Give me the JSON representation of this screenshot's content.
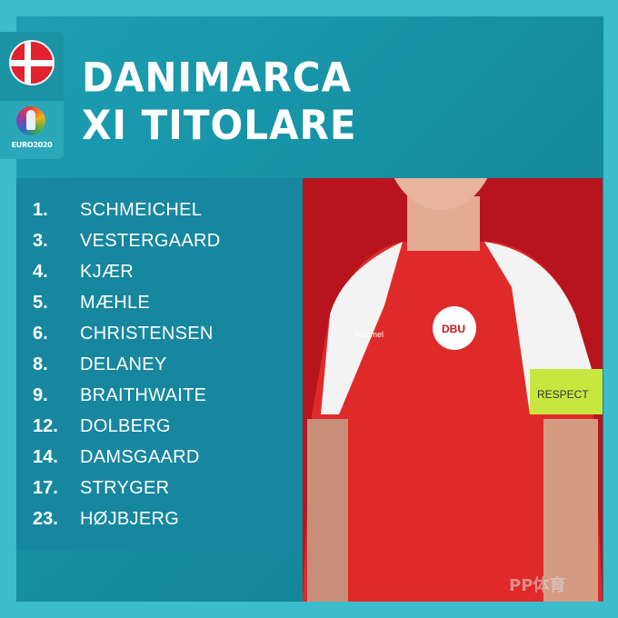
{
  "header": {
    "title_line1": "DANIMARCA",
    "title_line2": "XI TITOLARE"
  },
  "badges": {
    "flag_icon": "denmark-flag",
    "tournament_logo_text": "EURO2020"
  },
  "lineup": [
    {
      "number": "1.",
      "name": "SCHMEICHEL"
    },
    {
      "number": "3.",
      "name": "VESTERGAARD"
    },
    {
      "number": "4.",
      "name": "KJÆR"
    },
    {
      "number": "5.",
      "name": "MÆHLE"
    },
    {
      "number": "6.",
      "name": "CHRISTENSEN"
    },
    {
      "number": "8.",
      "name": "DELANEY"
    },
    {
      "number": "9.",
      "name": "BRAITHWAITE"
    },
    {
      "number": "12.",
      "name": "DOLBERG"
    },
    {
      "number": "14.",
      "name": "DAMSGAARD"
    },
    {
      "number": "17.",
      "name": "STRYGER"
    },
    {
      "number": "23.",
      "name": "HØJBJERG"
    }
  ],
  "photo": {
    "armband_text": "RESPECT",
    "crest_text": "DBU",
    "kit_brand": "hummel"
  },
  "watermark": "PP体育",
  "colors": {
    "background": "#3cbccd",
    "panel": "#148a9d",
    "list": "#1787a0",
    "photo_bg": "#b8141e",
    "shirt": "#e02a2a"
  }
}
